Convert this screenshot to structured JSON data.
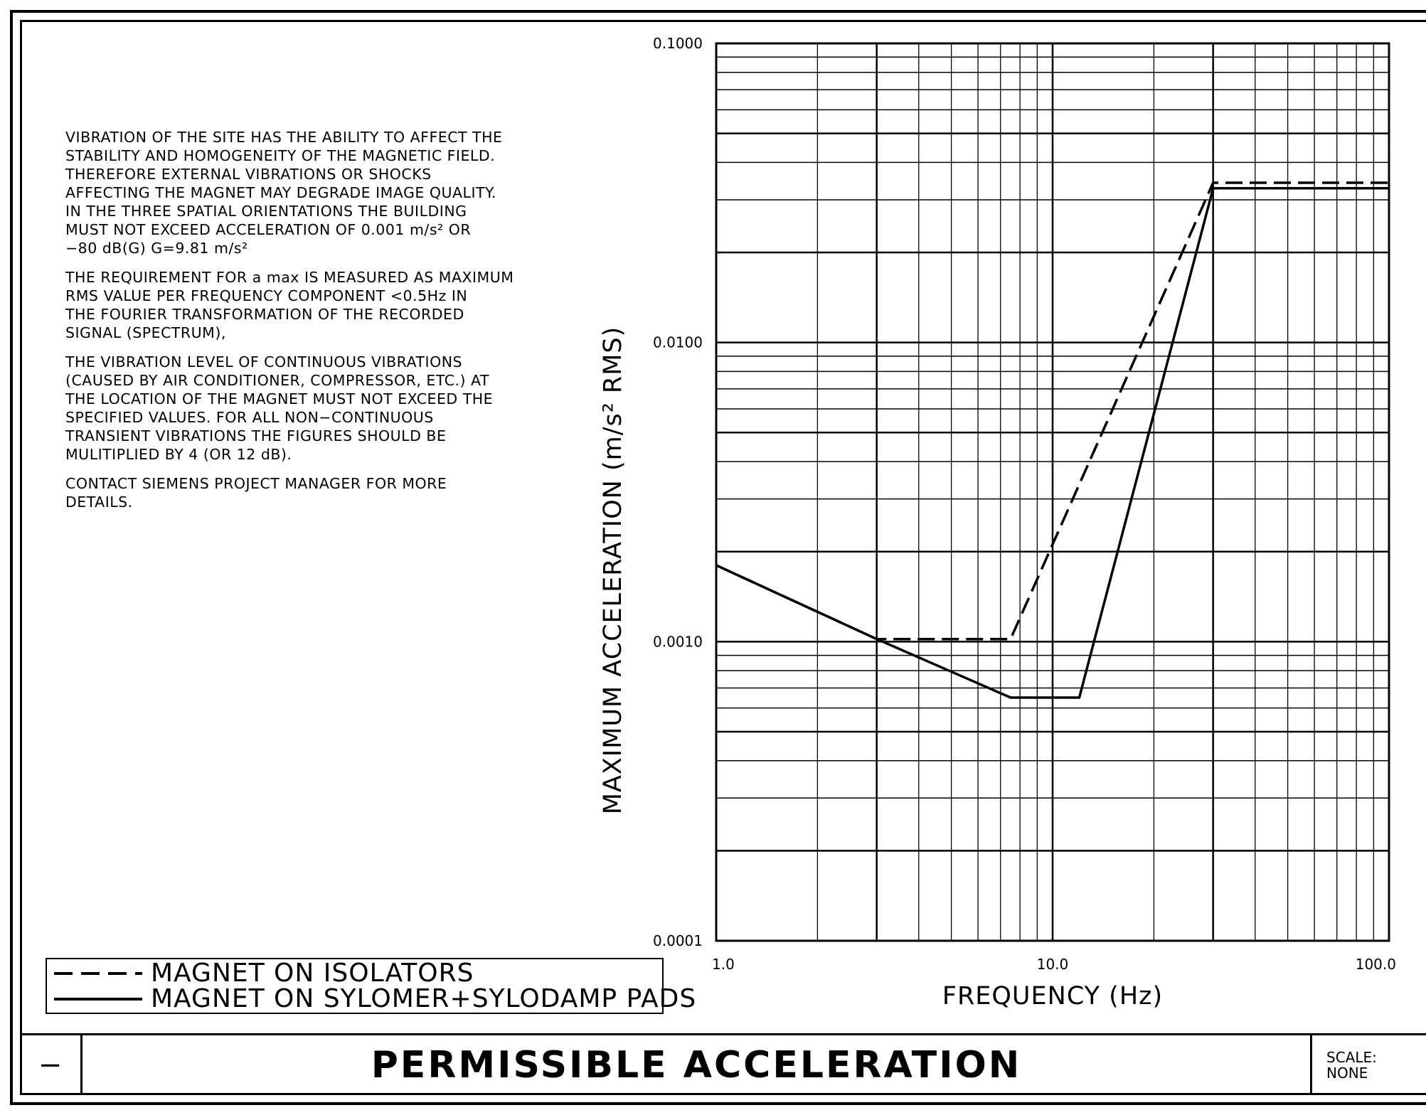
{
  "notes": {
    "paragraph_1": "VIBRATION OF THE SITE HAS THE ABILITY TO AFFECT THE\nSTABILITY AND HOMOGENEITY OF THE MAGNETIC FIELD.\nTHEREFORE EXTERNAL VIBRATIONS OR SHOCKS\nAFFECTING THE MAGNET MAY DEGRADE IMAGE QUALITY.\nIN THE THREE SPATIAL ORIENTATIONS THE BUILDING\nMUST NOT EXCEED ACCELERATION OF 0.001 m/s² OR\n−80 dB(G) G=9.81 m/s²",
    "paragraph_2": "THE REQUIREMENT FOR a max IS MEASURED AS MAXIMUM\nRMS VALUE PER FREQUENCY COMPONENT <0.5Hz IN\nTHE FOURIER TRANSFORMATION OF THE RECORDED\nSIGNAL (SPECTRUM),",
    "paragraph_3": "THE VIBRATION LEVEL OF CONTINUOUS VIBRATIONS\n(CAUSED BY AIR CONDITIONER, COMPRESSOR, ETC.) AT\nTHE LOCATION OF THE MAGNET MUST NOT EXCEED THE\nSPECIFIED VALUES. FOR ALL NON−CONTINUOUS\nTRANSIENT VIBRATIONS THE FIGURES SHOULD BE\nMULITIPLIED BY 4 (OR 12 dB).",
    "paragraph_4": "CONTACT SIEMENS PROJECT MANAGER FOR MORE\nDETAILS."
  },
  "legend": {
    "dashed_label": "MAGNET ON ISOLATORS",
    "solid_label": "MAGNET ON SYLOMER+SYLODAMP PADS"
  },
  "title_block": {
    "revision": "−",
    "title": "PERMISSIBLE ACCELERATION",
    "scale_label": "SCALE:",
    "scale_value": "NONE"
  },
  "chart_data": {
    "type": "line",
    "title": "",
    "xlabel": "FREQUENCY (Hz)",
    "ylabel": "MAXIMUM ACCELERATION (m/s² RMS)",
    "x_scale": "log",
    "y_scale": "log",
    "xlim": [
      1.0,
      100.0
    ],
    "ylim": [
      0.0001,
      0.1
    ],
    "grid": true,
    "x_tick_labels": [
      "1.0",
      "10.0",
      "100.0"
    ],
    "y_tick_labels": [
      "0.1000",
      "0.0100",
      "0.0010",
      "0.0001"
    ],
    "legend_position": "bottom-left",
    "series": [
      {
        "name": "MAGNET ON ISOLATORS",
        "style": "dashed",
        "x": [
          1.0,
          3.0,
          7.5,
          30.0,
          100.0
        ],
        "y": [
          0.0018,
          0.00102,
          0.00102,
          0.0342,
          0.0342
        ]
      },
      {
        "name": "MAGNET ON SYLOMER+SYLODAMP PADS",
        "style": "solid",
        "x": [
          1.0,
          3.0,
          7.5,
          12.0,
          30.0,
          100.0
        ],
        "y": [
          0.0018,
          0.00102,
          0.00065,
          0.00065,
          0.0328,
          0.0328
        ]
      }
    ]
  }
}
